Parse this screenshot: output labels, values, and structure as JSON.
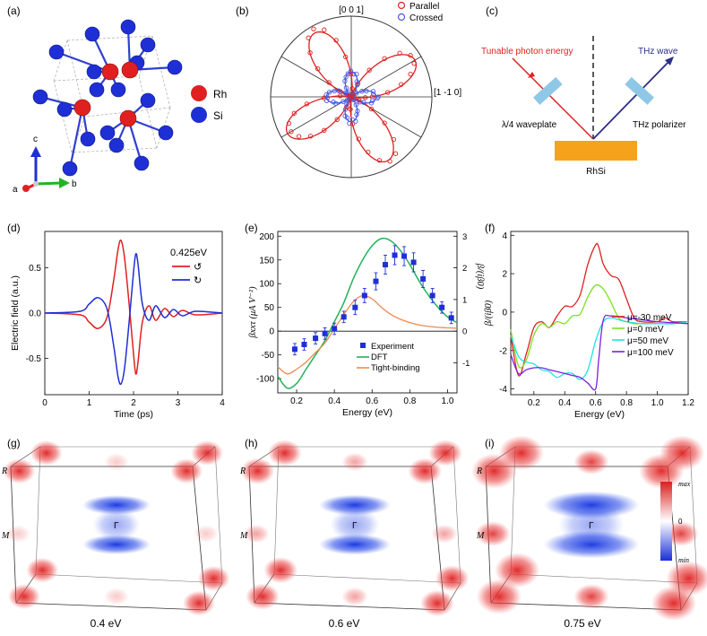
{
  "panels": {
    "a": {
      "tag": "(a)",
      "legend": [
        {
          "label": "Rh",
          "color": "#e02020"
        },
        {
          "label": "Si",
          "color": "#1f2fd6"
        }
      ],
      "axes": {
        "a": "a",
        "b": "b",
        "c": "c"
      }
    },
    "b": {
      "tag": "(b)",
      "top_label": "[0 0 1]",
      "right_label": "[1 -1 0]",
      "legend": [
        {
          "label": "Parallel",
          "color": "#e02020"
        },
        {
          "label": "Crossed",
          "color": "#4a5be0"
        }
      ]
    },
    "c": {
      "tag": "(c)",
      "photon_label": "Tunable photon energy",
      "thz_label": "THz wave",
      "waveplate_label": "λ/4 waveplate",
      "polarizer_label": "THz polarizer",
      "sample_label": "RhSi",
      "photon_color": "#e02020",
      "thz_color": "#2b2f86",
      "sample_color": "#f7a21b",
      "optic_color": "#8ec8e6"
    },
    "d": {
      "tag": "(d)",
      "annotation": "0.425eV",
      "legend": [
        {
          "label": "↺",
          "color": "#e02020"
        },
        {
          "label": "↻",
          "color": "#1f2fd6"
        }
      ]
    },
    "e": {
      "tag": "(e)",
      "legend": [
        {
          "label": "Experiment",
          "color": "#1f2fd6"
        },
        {
          "label": "DFT",
          "color": "#22b35a"
        },
        {
          "label": "Tight-binding",
          "color": "#f08a50"
        }
      ]
    },
    "f": {
      "tag": "(f)",
      "legend": [
        {
          "label": "μ=-30 meV",
          "color": "#e02020"
        },
        {
          "label": "μ=0 meV",
          "color": "#7ee020"
        },
        {
          "label": "μ=50 meV",
          "color": "#22e0e0"
        },
        {
          "label": "μ=100 meV",
          "color": "#7a20e0"
        }
      ]
    },
    "g": {
      "tag": "(g)",
      "caption": "0.4 eV",
      "R": "R",
      "M": "M",
      "G": "Γ"
    },
    "h": {
      "tag": "(h)",
      "caption": "0.6 eV",
      "R": "R",
      "M": "M",
      "G": "Γ"
    },
    "i": {
      "tag": "(i)",
      "caption": "0.75 eV",
      "R": "R",
      "M": "M",
      "G": "Γ"
    },
    "colorbar": {
      "max": "max",
      "zero": "0",
      "min": "min"
    }
  },
  "chart_data": [
    {
      "id": "b",
      "type": "polar",
      "series": [
        {
          "name": "Parallel",
          "color": "#e02020",
          "model": "four-lobe rose, lobes toward ±30° and ±150°"
        },
        {
          "name": "Crossed",
          "color": "#4a5be0",
          "model": "four small lobes toward 0°, 90°, 180°, 270°"
        }
      ]
    },
    {
      "id": "d",
      "type": "line",
      "xlabel": "Time (ps)",
      "ylabel": "Electric field (a.u.)",
      "xlim": [
        0,
        4
      ],
      "ylim": [
        -0.9,
        0.9
      ],
      "xticks": [
        0,
        1,
        2,
        3,
        4
      ],
      "yticks": [
        -0.5,
        0,
        0.5
      ],
      "ytick_labels": [
        "-0.5",
        "0.0",
        "0.5"
      ],
      "series": [
        {
          "name": "↺",
          "color": "#e02020",
          "x": [
            0,
            0.8,
            1.0,
            1.2,
            1.4,
            1.55,
            1.65,
            1.72,
            1.8,
            1.9,
            2.0,
            2.05,
            2.1,
            2.2,
            2.35,
            2.5,
            2.7,
            2.9,
            3.1,
            3.4,
            4.0
          ],
          "y": [
            0,
            -0.02,
            -0.1,
            -0.17,
            -0.05,
            0.35,
            0.7,
            0.8,
            0.6,
            0.1,
            -0.45,
            -0.67,
            -0.55,
            -0.1,
            0.08,
            -0.08,
            0.05,
            -0.04,
            0.03,
            -0.02,
            0
          ]
        },
        {
          "name": "↻",
          "color": "#1f2fd6",
          "x": [
            0,
            0.8,
            1.0,
            1.2,
            1.4,
            1.55,
            1.65,
            1.72,
            1.8,
            1.9,
            2.0,
            2.05,
            2.1,
            2.2,
            2.35,
            2.5,
            2.7,
            2.9,
            3.1,
            3.4,
            4.0
          ],
          "y": [
            0,
            0.02,
            0.1,
            0.17,
            0.05,
            -0.35,
            -0.7,
            -0.78,
            -0.6,
            -0.1,
            0.45,
            0.65,
            0.55,
            0.1,
            -0.08,
            0.08,
            -0.05,
            0.04,
            -0.03,
            0.02,
            0
          ]
        }
      ]
    },
    {
      "id": "e",
      "type": "line+scatter",
      "xlabel": "Energy (eV)",
      "ylabel": "βxxτ (μA V⁻²)",
      "y2label": "β/(iβ0)",
      "xlim": [
        0.1,
        1.05
      ],
      "ylim": [
        -130,
        210
      ],
      "y2lim": [
        -1.95,
        3.15
      ],
      "xticks": [
        0.2,
        0.4,
        0.6,
        0.8,
        1.0
      ],
      "yticks": [
        -100,
        -50,
        0,
        50,
        100,
        150,
        200
      ],
      "y2ticks": [
        -1,
        0,
        1,
        2,
        3
      ],
      "series": [
        {
          "name": "Experiment",
          "color": "#1f2fd6",
          "x": [
            0.19,
            0.24,
            0.3,
            0.35,
            0.4,
            0.45,
            0.51,
            0.56,
            0.62,
            0.67,
            0.72,
            0.77,
            0.82,
            0.87,
            0.92,
            0.97,
            1.02
          ],
          "y": [
            -38,
            -28,
            -15,
            -5,
            5,
            30,
            50,
            75,
            105,
            140,
            160,
            158,
            145,
            110,
            75,
            50,
            28
          ],
          "err": [
            12,
            12,
            12,
            12,
            12,
            12,
            15,
            15,
            18,
            20,
            20,
            20,
            20,
            18,
            15,
            12,
            12
          ]
        },
        {
          "name": "DFT",
          "color": "#22b35a",
          "x": [
            0.1,
            0.15,
            0.2,
            0.25,
            0.3,
            0.35,
            0.4,
            0.45,
            0.5,
            0.55,
            0.6,
            0.65,
            0.7,
            0.75,
            0.8,
            0.85,
            0.9,
            0.95,
            1.0,
            1.05
          ],
          "y": [
            -95,
            -120,
            -110,
            -80,
            -50,
            -20,
            20,
            60,
            110,
            150,
            180,
            195,
            190,
            170,
            140,
            105,
            75,
            50,
            30,
            18
          ]
        },
        {
          "name": "Tight-binding",
          "color": "#f08a50",
          "x": [
            0.1,
            0.15,
            0.2,
            0.25,
            0.3,
            0.35,
            0.4,
            0.45,
            0.5,
            0.55,
            0.6,
            0.65,
            0.7,
            0.75,
            0.8,
            0.85,
            0.9,
            0.95,
            1.0,
            1.05
          ],
          "y": [
            -75,
            -90,
            -80,
            -65,
            -45,
            -25,
            5,
            35,
            62,
            75,
            68,
            50,
            35,
            25,
            18,
            13,
            10,
            8,
            7,
            6
          ]
        }
      ]
    },
    {
      "id": "f",
      "type": "line",
      "xlabel": "Energy (eV)",
      "ylabel": "β/(iβ0)",
      "xlim": [
        0.05,
        1.2
      ],
      "ylim": [
        -4.3,
        4.2
      ],
      "xticks": [
        0.2,
        0.4,
        0.6,
        0.8,
        1.0,
        1.2
      ],
      "yticks": [
        -4,
        -2,
        0,
        2,
        4
      ],
      "series": [
        {
          "name": "μ=-30 meV",
          "color": "#e02020",
          "x": [
            0.05,
            0.1,
            0.15,
            0.2,
            0.25,
            0.3,
            0.35,
            0.4,
            0.45,
            0.5,
            0.55,
            0.6,
            0.62,
            0.65,
            0.7,
            0.75,
            0.8,
            0.85,
            0.9,
            1.0,
            1.05,
            1.1,
            1.2
          ],
          "y": [
            -1.2,
            -3.3,
            -2.2,
            -0.8,
            -0.5,
            -0.8,
            -0.2,
            0.3,
            0.3,
            0.9,
            2.5,
            3.5,
            3.4,
            2.5,
            1.9,
            1.7,
            0.7,
            -0.3,
            -0.5,
            -0.5,
            -0.3,
            -0.5,
            -0.5
          ]
        },
        {
          "name": "μ=0 meV",
          "color": "#7ee020",
          "x": [
            0.05,
            0.1,
            0.15,
            0.2,
            0.25,
            0.3,
            0.35,
            0.4,
            0.45,
            0.5,
            0.55,
            0.6,
            0.65,
            0.7,
            0.75,
            0.8,
            0.85,
            0.9,
            1.0,
            1.1,
            1.2
          ],
          "y": [
            -0.9,
            -2.8,
            -2.5,
            -1.2,
            -0.6,
            -0.8,
            -0.5,
            -0.6,
            -0.2,
            -0.1,
            0.8,
            1.4,
            1.2,
            0.5,
            -0.3,
            -0.5,
            -0.6,
            -0.6,
            -0.6,
            -0.6,
            -0.5
          ]
        },
        {
          "name": "μ=50 meV",
          "color": "#22e0e0",
          "x": [
            0.05,
            0.1,
            0.15,
            0.2,
            0.25,
            0.3,
            0.35,
            0.4,
            0.45,
            0.5,
            0.55,
            0.6,
            0.65,
            0.7,
            0.75,
            0.8,
            0.9,
            1.0,
            1.1,
            1.2
          ],
          "y": [
            -1.2,
            -2.3,
            -2.6,
            -2.7,
            -3.0,
            -3.1,
            -3.4,
            -3.2,
            -3.2,
            -3.5,
            -3.0,
            -1.5,
            -0.5,
            -0.3,
            -0.4,
            -0.5,
            -0.6,
            -0.6,
            -0.6,
            -0.5
          ]
        },
        {
          "name": "μ=100 meV",
          "color": "#7a20e0",
          "x": [
            0.05,
            0.1,
            0.15,
            0.2,
            0.25,
            0.3,
            0.35,
            0.4,
            0.45,
            0.5,
            0.55,
            0.6,
            0.62,
            0.65,
            0.7,
            0.8,
            0.9,
            1.0,
            1.1,
            1.2
          ],
          "y": [
            -2.2,
            -3.2,
            -3.0,
            -2.9,
            -2.9,
            -3.0,
            -3.1,
            -3.2,
            -3.3,
            -3.4,
            -3.7,
            -4.0,
            -2.5,
            -0.4,
            -0.2,
            -0.3,
            -0.4,
            -0.5,
            -0.55,
            -0.6
          ]
        }
      ]
    }
  ]
}
